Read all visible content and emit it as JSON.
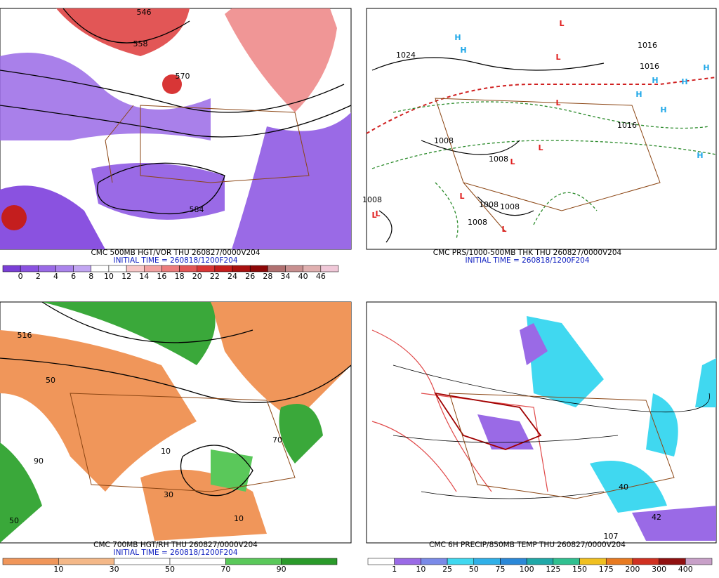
{
  "panels": [
    {
      "title": "CMC 500MB HGT/VOR THU 260827/0000V204",
      "init_time": "INITIAL TIME = 260818/1200F204",
      "labels": [
        "546",
        "558",
        "570",
        "584"
      ],
      "colorbar": {
        "labels": [
          "0",
          "2",
          "4",
          "6",
          "8",
          "10",
          "12",
          "14",
          "16",
          "18",
          "20",
          "22",
          "24",
          "26",
          "28",
          "34",
          "40",
          "46"
        ],
        "colors": [
          "#7a3fd6",
          "#8a52e0",
          "#9a6ae6",
          "#ab84ec",
          "#c2a6f2",
          "#ffffff",
          "#ffffff",
          "#f8c8c8",
          "#f2a2a2",
          "#ec7c7c",
          "#e25656",
          "#d83636",
          "#c41e1e",
          "#a81010",
          "#8c0808",
          "#b07070",
          "#c89090",
          "#e0b0b0",
          "#f0c8d8"
        ]
      }
    },
    {
      "title": "CMC PRS/1000-500MB THK THU 260827/0000V204",
      "init_time": "INITIAL TIME = 260818/1200F204",
      "labels": [
        "1024",
        "1016",
        "1008",
        "1016",
        "1016",
        "1008",
        "1008",
        "1008",
        "1008",
        "1008"
      ],
      "highs": [
        "H",
        "H",
        "H",
        "H",
        "H",
        "H",
        "H",
        "H"
      ],
      "lows": [
        "L",
        "L",
        "L",
        "L",
        "L",
        "L",
        "L",
        "L",
        "L"
      ]
    },
    {
      "title": "CMC 700MB HGT/RH THU 260827/0000V204",
      "init_time": "INITIAL TIME = 260818/1200F204",
      "labels": [
        "50",
        "10",
        "30",
        "70",
        "90",
        "50",
        "10",
        "516"
      ],
      "colorbar": {
        "labels": [
          "10",
          "30",
          "50",
          "70",
          "90"
        ],
        "colors": [
          "#f0965a",
          "#f4b888",
          "#ffffff",
          "#ffffff",
          "#5ac85a",
          "#2a9a2a"
        ]
      }
    },
    {
      "title": "CMC 6H PRECIP/850MB TEMP THU 260827/0000V204",
      "labels": [
        "40",
        "42",
        "107"
      ],
      "colorbar": {
        "labels": [
          "1",
          "10",
          "25",
          "50",
          "75",
          "100",
          "125",
          "150",
          "175",
          "200",
          "300",
          "400"
        ],
        "colors": [
          "#ffffff",
          "#9a6ae6",
          "#7a8ae8",
          "#40d8f0",
          "#30b0e8",
          "#2a88d8",
          "#20a8a8",
          "#30c090",
          "#f0c020",
          "#e87a20",
          "#d03020",
          "#901010",
          "#c8a0c8"
        ]
      }
    }
  ]
}
